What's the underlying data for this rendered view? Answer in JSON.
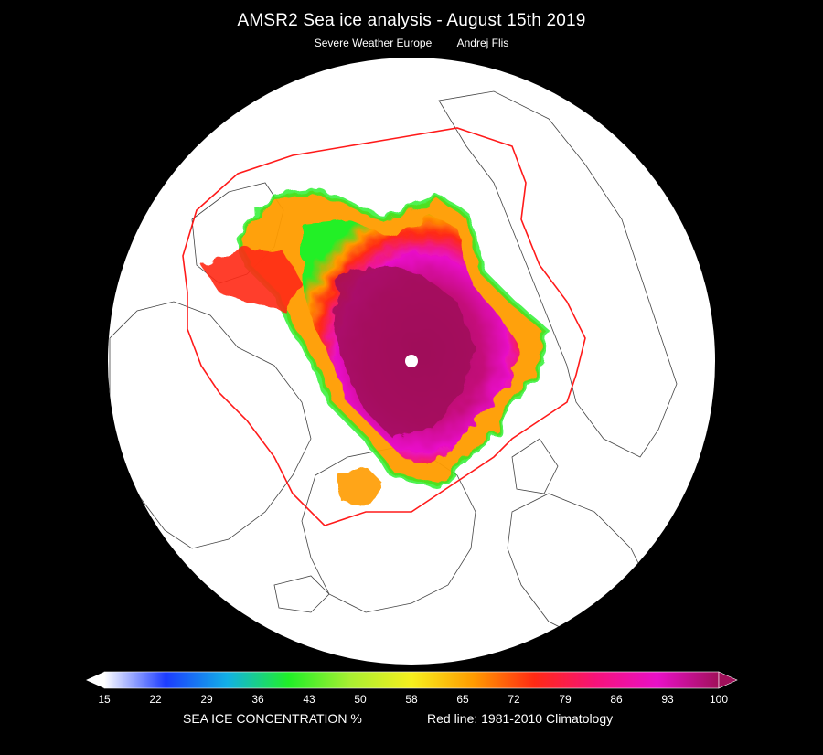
{
  "header": {
    "title": "AMSR2 Sea ice analysis  -  August 15th 2019",
    "source": "Severe Weather Europe",
    "author": "Andrej Flis"
  },
  "colorbar": {
    "ticks": [
      "15",
      "22",
      "29",
      "36",
      "43",
      "50",
      "58",
      "65",
      "72",
      "79",
      "86",
      "93",
      "100"
    ],
    "colors": [
      "#ffffff",
      "#1c3cff",
      "#12b0e6",
      "#20f028",
      "#a8f032",
      "#f6f01e",
      "#ff9c00",
      "#ff2a14",
      "#f6127a",
      "#e810c8",
      "#a0105a"
    ],
    "under_color": "#ffffff",
    "over_color": "#a0105a",
    "label": "SEA ICE CONCENTRATION %",
    "climatology_note": "Red line: 1981-2010 Climatology"
  },
  "map": {
    "background": "#ffffff",
    "land_outline_color": "#444444",
    "climatology_line_color": "#ff1a1a",
    "pole_hole_color": "#ffffff"
  }
}
